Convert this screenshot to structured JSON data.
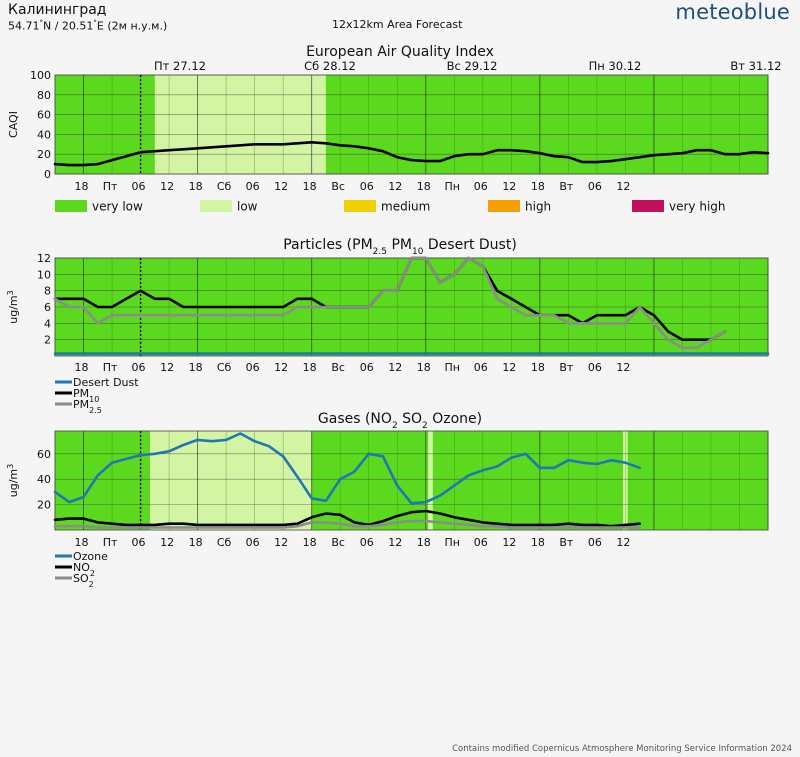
{
  "header": {
    "city": "Калининград",
    "coord_lat": "54.71",
    "coord_sep": "N / 20.51",
    "coord_rest": "E (2м н.у.м.)",
    "coord_deg": "°",
    "subtitle": "12x12km Area Forecast",
    "logo": "meteoblue"
  },
  "footer": "Contains modified Copernicus Atmosphere Monitoring Service Information 2024",
  "colors": {
    "very_low": "#5bd91e",
    "low": "#d3f5a3",
    "medium": "#f0d000",
    "high": "#f5a000",
    "very_high": "#c0105a",
    "desert_dust": "#1f77b4",
    "pm10": "#000000",
    "pm25": "#8c8c8c",
    "ozone": "#1f77b4",
    "no2": "#000000",
    "so2": "#8c8c8c"
  },
  "day_labels": [
    "Пт 27.12",
    "Сб 28.12",
    "Вс 29.12",
    "Пн 30.12",
    "Вт 31.12"
  ],
  "x_tick_labels": [
    "18",
    "Пт",
    "06",
    "12",
    "18",
    "Сб",
    "06",
    "12",
    "18",
    "Вс",
    "06",
    "12",
    "18",
    "Пн",
    "06",
    "12",
    "18",
    "Вт",
    "06",
    "12"
  ],
  "chart_data": [
    {
      "type": "line",
      "title": "European Air Quality Index",
      "ylabel": "CAQI",
      "ylim": [
        0,
        100
      ],
      "yticks": [
        0,
        20,
        40,
        60,
        80,
        100
      ],
      "x_hours": [
        0,
        3,
        6,
        9,
        12,
        15,
        18,
        21,
        24,
        27,
        30,
        33,
        36,
        39,
        42,
        45,
        48,
        51,
        54,
        57,
        60,
        63,
        66,
        69,
        72,
        75,
        78,
        81,
        84,
        87,
        90,
        93,
        96,
        99,
        102,
        105,
        108,
        111,
        114,
        117,
        120,
        123,
        126,
        129,
        132,
        135,
        138,
        141,
        144,
        147,
        150
      ],
      "series": [
        {
          "values": [
            10,
            9,
            9,
            10,
            14,
            18,
            22,
            23,
            24,
            25,
            26,
            27,
            28,
            29,
            30,
            30,
            30,
            31,
            32,
            31,
            29,
            28,
            26,
            23,
            17,
            14,
            13,
            13,
            18,
            20,
            20,
            24,
            24,
            23,
            21,
            18,
            17,
            12,
            12,
            13,
            15,
            17,
            19,
            20,
            21,
            24,
            24,
            20,
            20,
            22,
            21
          ]
        }
      ],
      "legend": [
        {
          "label": "very low",
          "color_key": "very_low"
        },
        {
          "label": "low",
          "color_key": "low"
        },
        {
          "label": "medium",
          "color_key": "medium"
        },
        {
          "label": "high",
          "color_key": "high"
        },
        {
          "label": "very high",
          "color_key": "very_high"
        }
      ],
      "background_bands": [
        {
          "from_hour": 0,
          "to_hour": 21,
          "level": "very_low"
        },
        {
          "from_hour": 21,
          "to_hour": 57,
          "level": "low"
        },
        {
          "from_hour": 57,
          "to_hour": 150,
          "level": "very_low"
        }
      ],
      "now_marker_hour": 18
    },
    {
      "type": "line",
      "title_main": "Particles (PM",
      "title_sub1": "2.5",
      "title_mid": " PM",
      "title_sub2": "10",
      "title_end": " Desert Dust)",
      "ylabel": "ug/m",
      "ylabel_sup": "3",
      "ylim": [
        0,
        12
      ],
      "yticks": [
        2,
        4,
        6,
        8,
        10,
        12
      ],
      "x_hours": [
        0,
        3,
        6,
        9,
        12,
        15,
        18,
        21,
        24,
        27,
        30,
        33,
        36,
        39,
        42,
        45,
        48,
        51,
        54,
        57,
        60,
        63,
        66,
        69,
        72,
        75,
        78,
        81,
        84,
        87,
        90,
        93,
        96,
        99,
        102,
        105,
        108,
        111,
        114,
        117,
        120,
        123,
        126,
        129,
        132,
        135,
        138,
        141,
        144,
        147,
        150
      ],
      "series": [
        {
          "name": "Desert Dust",
          "color_key": "desert_dust",
          "values": [
            0.3,
            0.3,
            0.3,
            0.3,
            0.3,
            0.3,
            0.3,
            0.3,
            0.3,
            0.3,
            0.3,
            0.3,
            0.3,
            0.3,
            0.3,
            0.3,
            0.3,
            0.3,
            0.3,
            0.3,
            0.3,
            0.3,
            0.3,
            0.3,
            0.3,
            0.3,
            0.3,
            0.3,
            0.3,
            0.3,
            0.3,
            0.3,
            0.3,
            0.3,
            0.3,
            0.3,
            0.3,
            0.3,
            0.3,
            0.3,
            0.3,
            0.3,
            0.3,
            0.3,
            0.3,
            0.3,
            0.3,
            0.3,
            0.3,
            0.3,
            0.3
          ]
        },
        {
          "name_main": "PM",
          "name_sub": "10",
          "color_key": "pm10",
          "values": [
            7,
            7,
            7,
            6,
            6,
            7,
            8,
            7,
            7,
            6,
            6,
            6,
            6,
            6,
            6,
            6,
            6,
            7,
            7,
            6,
            6,
            6,
            6,
            8,
            8,
            12,
            12,
            9,
            10,
            12,
            11,
            8,
            7,
            6,
            5,
            5,
            5,
            4,
            5,
            5,
            5,
            6,
            5,
            3,
            2,
            2,
            2,
            3
          ]
        },
        {
          "name_main": "PM",
          "name_sub": "2.5",
          "color_key": "pm25",
          "values": [
            7,
            6,
            6,
            4,
            5,
            5,
            5,
            5,
            5,
            5,
            5,
            5,
            5,
            5,
            5,
            5,
            5,
            6,
            6,
            6,
            6,
            6,
            6,
            8,
            8,
            12,
            12,
            9,
            10,
            12,
            11,
            7,
            6,
            5,
            5,
            5,
            4,
            4,
            4,
            4,
            4,
            6,
            4,
            2,
            1,
            1,
            2,
            3
          ]
        }
      ],
      "now_marker_hour": 18
    },
    {
      "type": "line",
      "title_main": "Gases (NO",
      "title_sub1": "2",
      "title_mid": " SO",
      "title_sub2": "2",
      "title_end": " Ozone)",
      "ylabel": "ug/m",
      "ylabel_sup": "3",
      "ylim": [
        0,
        78
      ],
      "yticks": [
        20,
        40,
        60
      ],
      "x_hours": [
        0,
        3,
        6,
        9,
        12,
        15,
        18,
        21,
        24,
        27,
        30,
        33,
        36,
        39,
        42,
        45,
        48,
        51,
        54,
        57,
        60,
        63,
        66,
        69,
        72,
        75,
        78,
        81,
        84,
        87,
        90,
        93,
        96,
        99,
        102,
        105,
        108,
        111,
        114,
        117,
        120,
        123,
        126,
        129,
        132,
        135,
        138,
        141,
        144,
        147,
        150
      ],
      "series": [
        {
          "name": "Ozone",
          "color_key": "ozone",
          "values": [
            30,
            22,
            26,
            43,
            53,
            56,
            59,
            60,
            62,
            67,
            71,
            70,
            71,
            76,
            70,
            66,
            58,
            42,
            25,
            23,
            40,
            46,
            60,
            58,
            35,
            21,
            22,
            27,
            35,
            43,
            47,
            50,
            57,
            60,
            49,
            49,
            55,
            53,
            52,
            55,
            53,
            49
          ]
        },
        {
          "name_main": "NO",
          "name_sub": "2",
          "color_key": "no2",
          "values": [
            8,
            9,
            9,
            6,
            5,
            4,
            4,
            4,
            5,
            5,
            4,
            4,
            4,
            4,
            4,
            4,
            4,
            5,
            10,
            13,
            12,
            6,
            4,
            7,
            11,
            14,
            15,
            13,
            10,
            8,
            6,
            5,
            4,
            4,
            4,
            4,
            5,
            4,
            4,
            3,
            4,
            5
          ]
        },
        {
          "name_main": "SO",
          "name_sub": "2",
          "color_key": "so2",
          "values": [
            3,
            3,
            3,
            2,
            2,
            2,
            2,
            2,
            2,
            2,
            2,
            2,
            2,
            2,
            2,
            2,
            2,
            3,
            6,
            6,
            5,
            3,
            3,
            4,
            6,
            7,
            7,
            6,
            5,
            4,
            3,
            3,
            2,
            2,
            2,
            2,
            2,
            2,
            2,
            2,
            2,
            2
          ]
        }
      ],
      "background_bands": [
        {
          "from_hour": 0,
          "to_hour": 20,
          "level": "very_low"
        },
        {
          "from_hour": 20,
          "to_hour": 54,
          "level": "low"
        },
        {
          "from_hour": 54,
          "to_hour": 78.5,
          "level": "very_low"
        },
        {
          "from_hour": 78.5,
          "to_hour": 79.5,
          "level": "low"
        },
        {
          "from_hour": 79.5,
          "to_hour": 119.5,
          "level": "very_low"
        },
        {
          "from_hour": 119.5,
          "to_hour": 120.5,
          "level": "low"
        },
        {
          "from_hour": 120.5,
          "to_hour": 150,
          "level": "very_low"
        }
      ],
      "now_marker_hour": 18
    }
  ]
}
